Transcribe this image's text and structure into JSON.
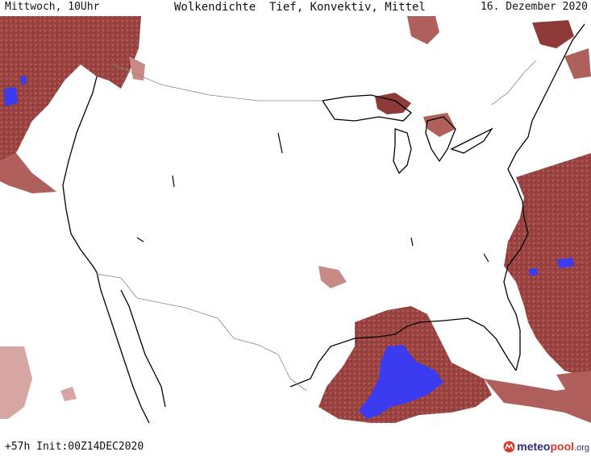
{
  "header": {
    "left": "Mittwoch, 10Uhr",
    "center": "Wolkendichte  Tief, Konvektiv, Mittel",
    "right": "16. Dezember 2020"
  },
  "footer": {
    "run_info": "+57h Init:00Z14DEC2020",
    "logo": {
      "part1": "meteo",
      "part2": "pool",
      "part3": ".org"
    }
  },
  "colors": {
    "cloud_dark": "#8e3a39",
    "cloud_mid": "#b0605c",
    "cloud_light": "#d7a5a2",
    "convective": "#3b3cf0",
    "coastline": "#000000",
    "border": "#888888"
  }
}
